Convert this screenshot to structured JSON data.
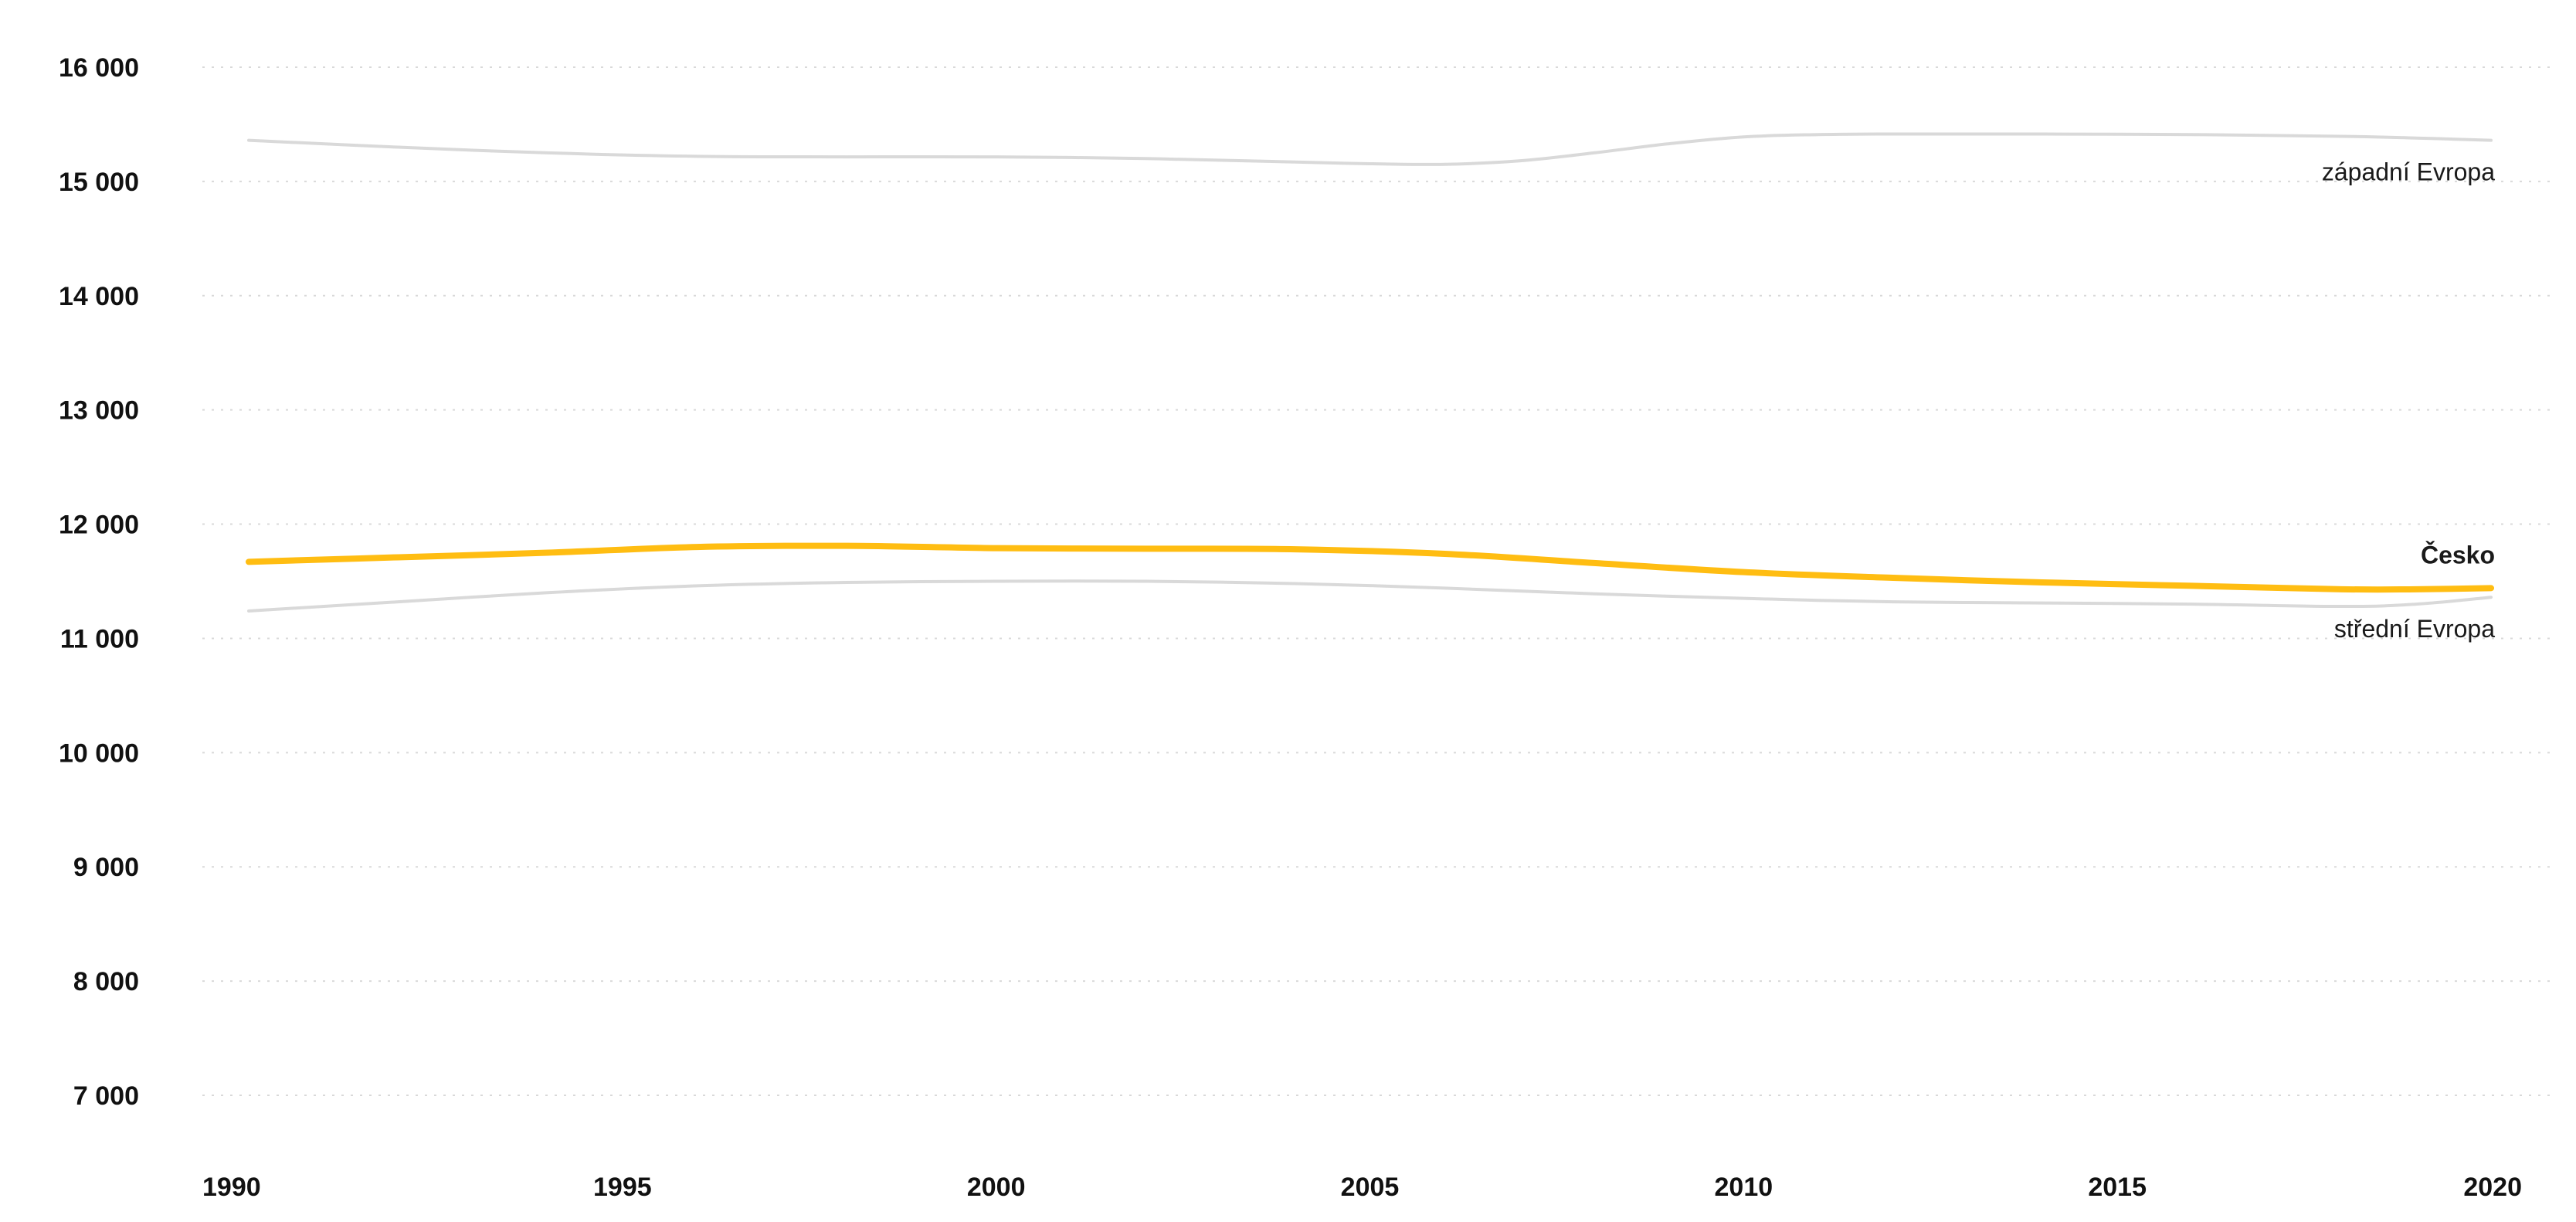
{
  "chart_data": {
    "type": "line",
    "title": "",
    "xlabel": "",
    "ylabel": "",
    "xlim": [
      1990,
      2020
    ],
    "ylim": [
      6500,
      16200
    ],
    "y_ticks": [
      7000,
      8000,
      9000,
      10000,
      11000,
      12000,
      13000,
      14000,
      15000,
      16000
    ],
    "y_tick_labels": [
      "7 000",
      "8 000",
      "9 000",
      "10 000",
      "11 000",
      "12 000",
      "13 000",
      "14 000",
      "15 000",
      "16 000"
    ],
    "x_ticks": [
      1990,
      1995,
      2000,
      2005,
      2010,
      2015,
      2020
    ],
    "x_tick_labels": [
      "1990",
      "1995",
      "2000",
      "2005",
      "2010",
      "2015",
      "2020"
    ],
    "grid": true,
    "legend": "inline labels at line ends",
    "series": [
      {
        "name": "západní Evropa",
        "color": "#d9d9d9",
        "emphasis": false,
        "x": [
          1990,
          1992,
          1994,
          1996,
          1998,
          2000,
          2002,
          2004,
          2005,
          2006,
          2007,
          2008,
          2009,
          2010,
          2011,
          2012,
          2014,
          2016,
          2018,
          2019,
          2020
        ],
        "y": [
          15360,
          15300,
          15250,
          15220,
          15215,
          15215,
          15200,
          15170,
          15155,
          15150,
          15180,
          15250,
          15330,
          15390,
          15410,
          15415,
          15415,
          15410,
          15395,
          15380,
          15360
        ]
      },
      {
        "name": "Česko",
        "color": "#ffbd12",
        "emphasis": true,
        "x": [
          1990,
          1992,
          1994,
          1996,
          1998,
          2000,
          2002,
          2004,
          2006,
          2008,
          2010,
          2012,
          2014,
          2016,
          2018,
          2019,
          2020
        ],
        "y": [
          11670,
          11710,
          11750,
          11800,
          11810,
          11790,
          11785,
          11780,
          11740,
          11660,
          11580,
          11530,
          11490,
          11460,
          11430,
          11430,
          11440
        ]
      },
      {
        "name": "střední Evropa",
        "color": "#d9d9d9",
        "emphasis": false,
        "x": [
          1990,
          1992,
          1994,
          1996,
          1998,
          2000,
          2002,
          2004,
          2006,
          2008,
          2010,
          2012,
          2014,
          2016,
          2018,
          2019,
          2020
        ],
        "y": [
          11240,
          11320,
          11400,
          11460,
          11490,
          11500,
          11500,
          11480,
          11440,
          11390,
          11350,
          11320,
          11310,
          11300,
          11280,
          11300,
          11360
        ]
      }
    ]
  }
}
